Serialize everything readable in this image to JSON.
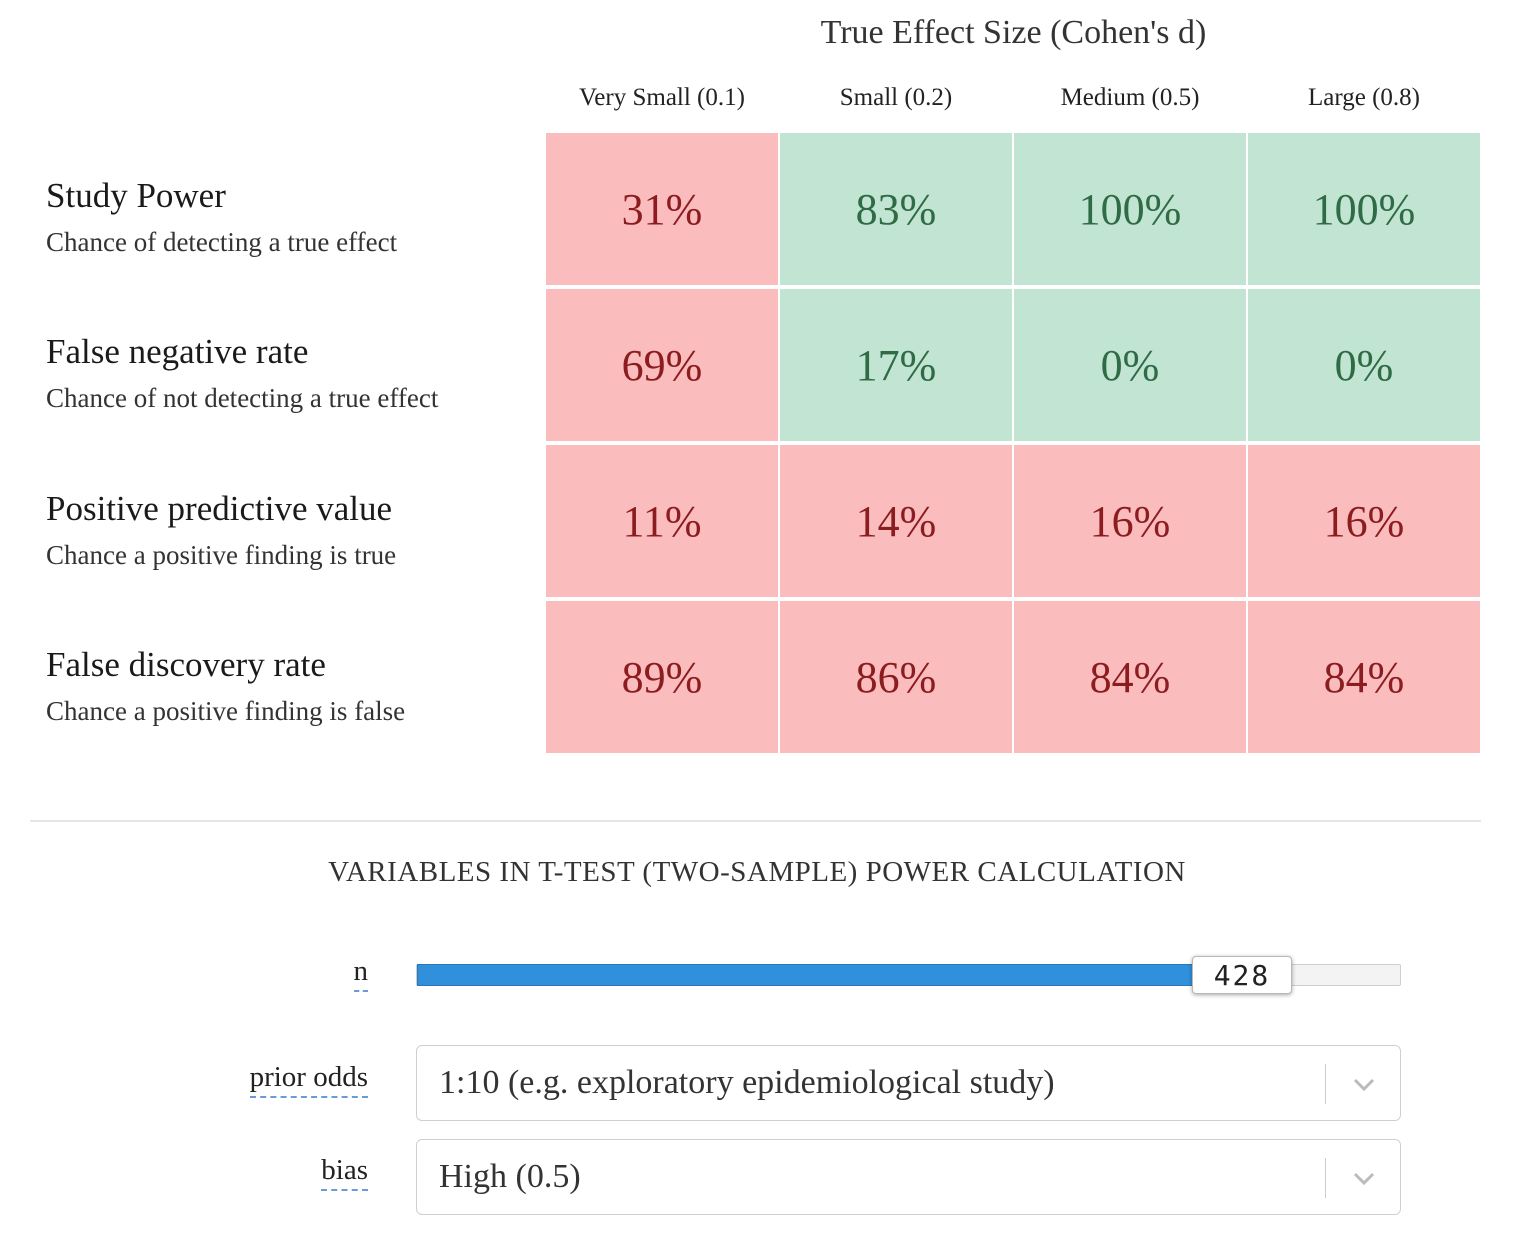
{
  "grid": {
    "title": "True Effect Size (Cohen's d)",
    "columns": [
      "Very Small (0.1)",
      "Small (0.2)",
      "Medium (0.5)",
      "Large (0.8)"
    ],
    "rows": [
      {
        "title": "Study Power",
        "subtitle": "Chance of detecting a true effect",
        "values": [
          "31%",
          "83%",
          "100%",
          "100%"
        ],
        "status": [
          "bad",
          "good",
          "good",
          "good"
        ]
      },
      {
        "title": "False negative rate",
        "subtitle": "Chance of not detecting a true effect",
        "values": [
          "69%",
          "17%",
          "0%",
          "0%"
        ],
        "status": [
          "bad",
          "good",
          "good",
          "good"
        ]
      },
      {
        "title": "Positive predictive value",
        "subtitle": "Chance a positive finding is true",
        "values": [
          "11%",
          "14%",
          "16%",
          "16%"
        ],
        "status": [
          "bad",
          "bad",
          "bad",
          "bad"
        ]
      },
      {
        "title": "False discovery rate",
        "subtitle": "Chance a positive finding is false",
        "values": [
          "89%",
          "86%",
          "84%",
          "84%"
        ],
        "status": [
          "bad",
          "bad",
          "bad",
          "bad"
        ]
      }
    ],
    "colors": {
      "bad_bg": "#fbbcbd",
      "bad_text": "#8b1c1f",
      "good_bg": "#c2e5d3",
      "good_text": "#2f6b45"
    }
  },
  "variables": {
    "title": "VARIABLES IN T-TEST (TWO-SAMPLE) POWER CALCULATION",
    "n": {
      "label": "n",
      "value": "428",
      "fill_fraction": 0.79,
      "fill_color": "#3090dc"
    },
    "prior_odds": {
      "label": "prior odds",
      "selected": "1:10 (e.g. exploratory epidemiological study)",
      "icon": "chevron-down-icon"
    },
    "bias": {
      "label": "bias",
      "selected": "High (0.5)",
      "icon": "chevron-down-icon"
    }
  }
}
